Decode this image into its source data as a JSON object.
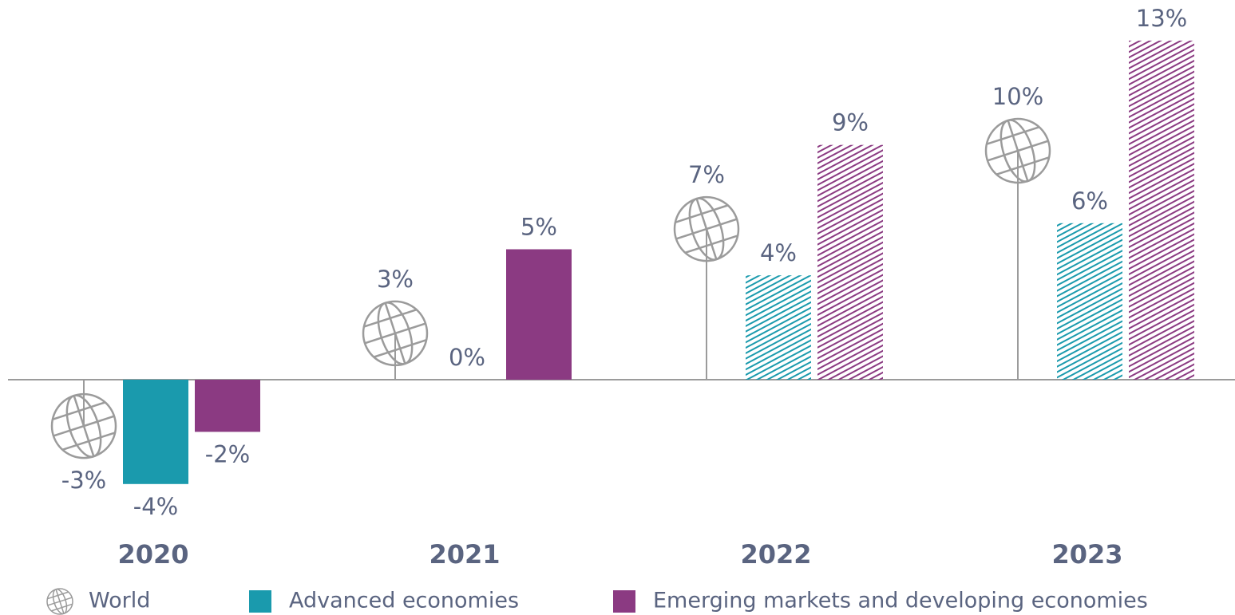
{
  "chart_data": {
    "type": "bar",
    "categories": [
      "2020",
      "2021",
      "2022",
      "2023"
    ],
    "hatch": [
      false,
      false,
      true,
      true
    ],
    "series": [
      {
        "name": "World",
        "color": "#9b9b9b",
        "style": "globe",
        "values": [
          -3,
          3,
          7,
          10
        ],
        "value_labels": [
          "-3%",
          "3%",
          "7%",
          "10%"
        ]
      },
      {
        "name": "Advanced economies",
        "color": "#1a9aad",
        "values": [
          -4,
          0,
          4,
          6
        ],
        "value_labels": [
          "-4%",
          "0%",
          "4%",
          "6%"
        ]
      },
      {
        "name": "Emerging markets and developing economies",
        "color": "#8b3a82",
        "values": [
          -2,
          5,
          9,
          13
        ],
        "value_labels": [
          "-2%",
          "5%",
          "9%",
          "13%"
        ]
      }
    ]
  }
}
